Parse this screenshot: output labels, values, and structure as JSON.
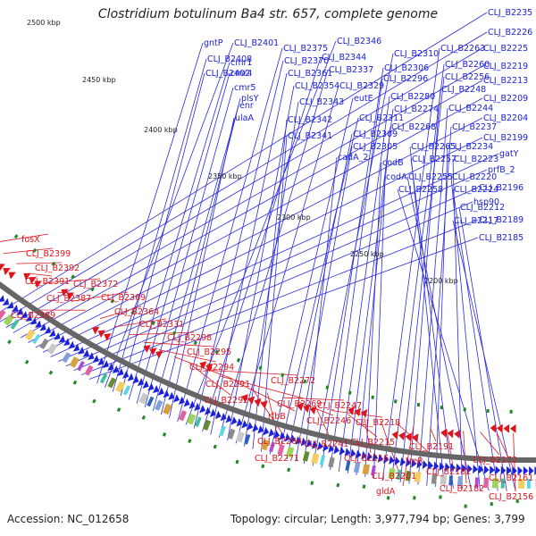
{
  "title": "Clostridium botulinum Ba4 str. 657, complete genome",
  "accession_text": "Accession: NC_012658",
  "stats_text": "Topology: circular; Length: 3,977,794 bp; Genes: 3,799",
  "colors": {
    "forward": "#1c22d6",
    "reverse": "#e0141c",
    "backbone": "#666666",
    "leader_forward": "#2a2ae0",
    "leader_reverse": "#e0141c",
    "tick_mark": "#1f8a1f"
  },
  "ticks": [
    "2500 kbp",
    "2450 kbp",
    "2400 kbp",
    "2350 kbp",
    "2300 kbp",
    "2250 kbp",
    "2200 kbp"
  ],
  "forward_labels": [
    "CLJ_B2235",
    "CLJ_B2226",
    "CLJ_B2225",
    "CLJ_B2219",
    "CLJ_B2213",
    "CLJ_B2209",
    "CLJ_B2204",
    "CLJ_B2199",
    "gatY",
    "prfB_2",
    "CLJ_B2196",
    "hsp90",
    "CLJ_B2189",
    "CLJ_B2185",
    "gntP",
    "CLJ_B2401",
    "CLJ_B2408",
    "CLJ_B2402",
    "cmr1",
    "cmr4",
    "cmr5",
    "enr",
    "plsY",
    "ulaA",
    "CLJ_B2375",
    "CLJ_B2346",
    "CLJ_B2370",
    "CLJ_B2344",
    "CLJ_B2361",
    "CLJ_B2337",
    "CLJ_B2354",
    "CLJ_B2329",
    "CLJ_B2343",
    "CLJ_B2342",
    "CLJ_B2341",
    "eutE",
    "CLJ_B2311",
    "CLJ_B2309",
    "CLJ_B2305",
    "cadA_2",
    "CLJ_B2310",
    "CLJ_B2306",
    "CLJ_B2296",
    "CLJ_B2280",
    "CLJ_B2274",
    "CLJ_B2268",
    "codB",
    "codA",
    "CLJ_B2263",
    "CLJ_B2260",
    "CLJ_B2256",
    "CLJ_B2248",
    "CLJ_B2244",
    "CLJ_B2237",
    "CLJ_B2234",
    "CLJ_B2265",
    "CLJ_B2257",
    "CLJ_B2223",
    "CLJ_B2255",
    "CLJ_B2220",
    "CLJ_B2258",
    "CLJ_B2224",
    "CLJ_B2212",
    "CLJ_B2217"
  ],
  "reverse_labels": [
    "fosX",
    "CLJ_B2399",
    "CLJ_B2392",
    "CLJ_B2391",
    "CLJ_B2372",
    "CLJ_B2387",
    "CLJ_B2369",
    "CLJ_B2389",
    "CLJ_B2364",
    "CLJ_B2331",
    "CLJ_B2298",
    "CLJ_B2295",
    "CLJ_B2294",
    "CLJ_B2291",
    "CLJ_B2292",
    "CLJ_B2272",
    "CLJ_B2269",
    "rfbB",
    "CLJ_B2264",
    "CLJ_B2271",
    "CLJ_B2247",
    "CLJ_B2246",
    "CLJ_B2241",
    "CLJ_B2218",
    "CLJ_B2215",
    "CLJ_B2216",
    "CLJ_B2201",
    "treR",
    "gldA",
    "CLJ_B2191",
    "CLJ_B2181",
    "CLJ_B2182",
    "CLJ_B2172",
    "CLJ_B2161",
    "CLJ_B2156"
  ]
}
